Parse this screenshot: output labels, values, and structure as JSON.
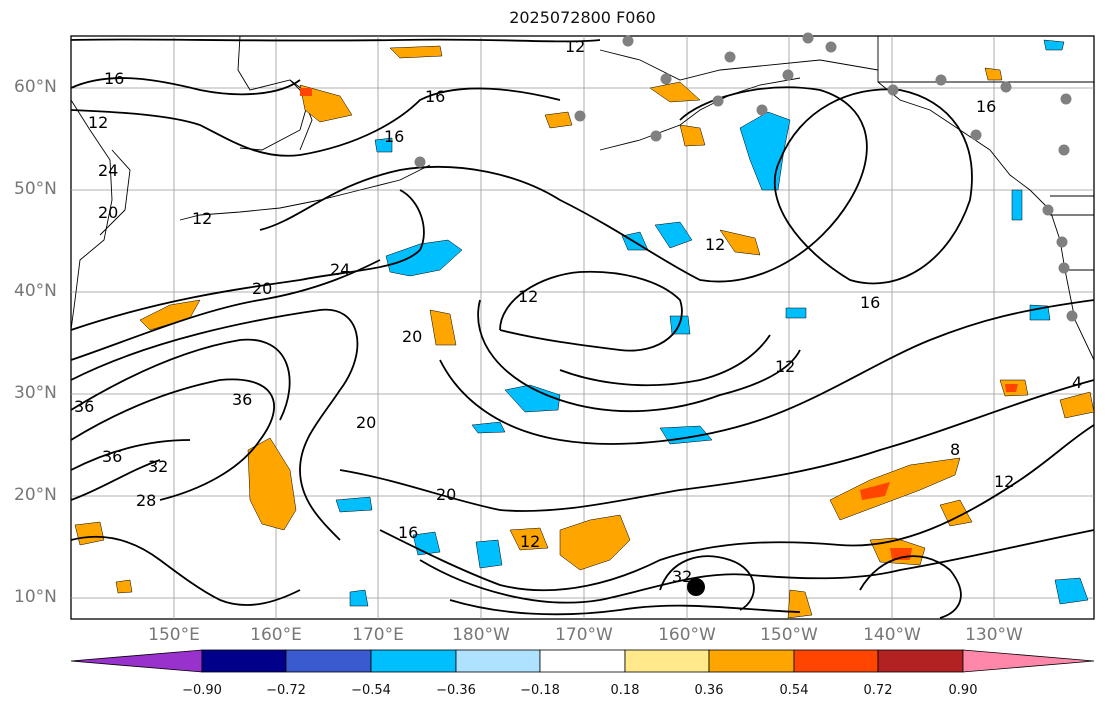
{
  "title": "2025072800 F060",
  "lat_labels": [
    "60°N",
    "50°N",
    "40°N",
    "30°N",
    "20°N",
    "10°N"
  ],
  "lon_labels": [
    "150°E",
    "160°E",
    "170°E",
    "180°W",
    "170°W",
    "160°W",
    "150°W",
    "140°W",
    "130°W"
  ],
  "colorbar": {
    "ticks": [
      "−0.90",
      "−0.72",
      "−0.54",
      "−0.36",
      "−0.18",
      "0.18",
      "0.36",
      "0.54",
      "0.72",
      "0.90"
    ],
    "colors": [
      "#9932cc",
      "#00008b",
      "#3a5bcf",
      "#00bfff",
      "#aee2ff",
      "#ffffff",
      "#ffe98a",
      "#ffa500",
      "#ff4500",
      "#b22222",
      "#ff88aa"
    ]
  },
  "contour_labels": [
    "16",
    "16",
    "16",
    "12",
    "12",
    "20",
    "24",
    "20",
    "20",
    "12",
    "16",
    "12",
    "36",
    "36",
    "36",
    "32",
    "28",
    "20",
    "20",
    "16",
    "12",
    "12",
    "32",
    "8",
    "12",
    "4",
    "24",
    "16",
    "12"
  ],
  "colors": {
    "shade_orange": "#ffa500",
    "shade_blue": "#00bfff",
    "station_gray": "#808080"
  }
}
